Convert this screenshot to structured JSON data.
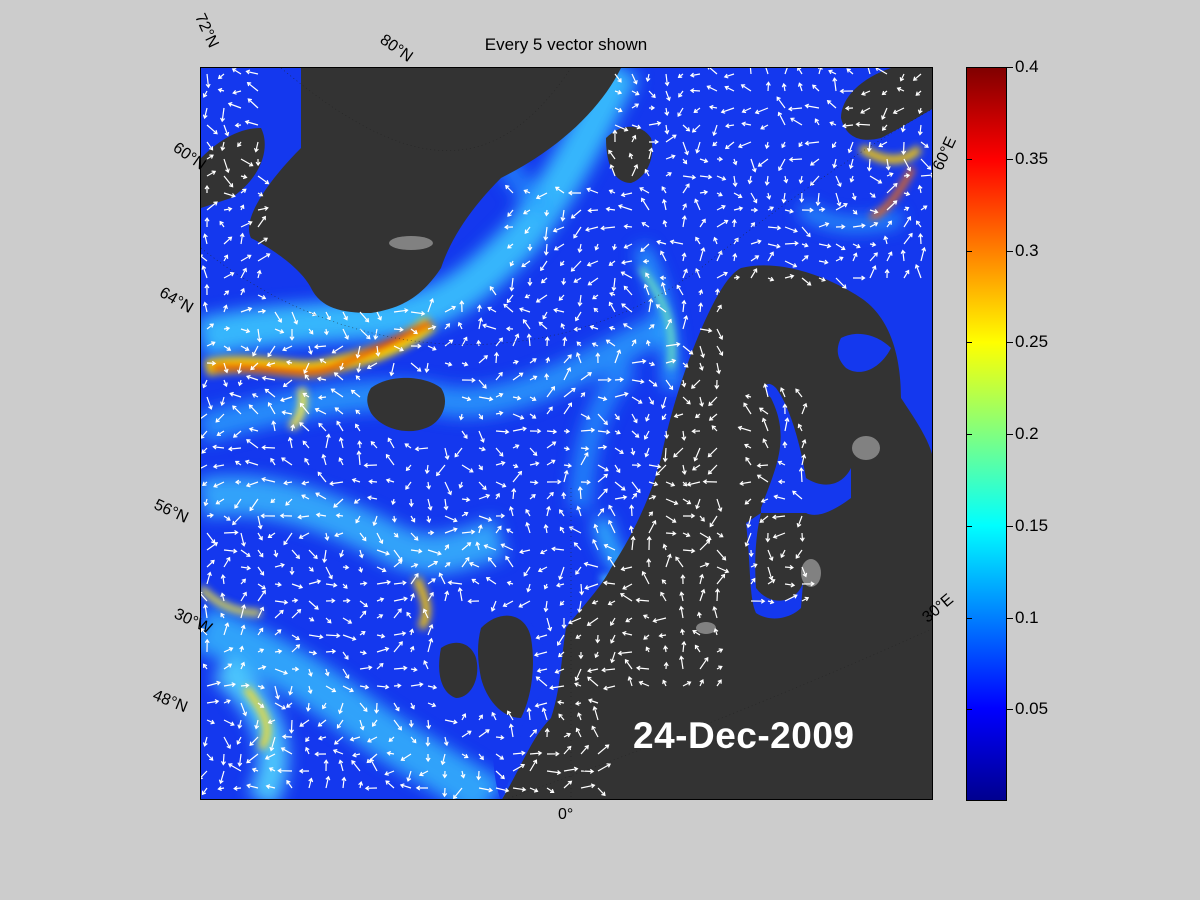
{
  "title": "Every 5 vector shown",
  "date_stamp": "24-Dec-2009",
  "graticule_labels": {
    "lat_72": "72°N",
    "lat_80": "80°N",
    "lat_60": "60°N",
    "lat_64": "64°N",
    "lat_56": "56°N",
    "lat_48": "48°N",
    "lon_30w": "30°W",
    "lon_0": "0°",
    "lon_30e": "30°E",
    "lon_60e": "60°E"
  },
  "colorbar": {
    "min": 0,
    "max": 0.4,
    "colormap": "jet",
    "tick_values": [
      0.05,
      0.1,
      0.15,
      0.2,
      0.25,
      0.3,
      0.35,
      0.4
    ],
    "tick_labels": [
      "0.05",
      "0.1",
      "0.15",
      "0.2",
      "0.25",
      "0.3",
      "0.35",
      "0.4"
    ]
  },
  "colors": {
    "background": "#cccccc",
    "land": "#333333",
    "ice": "#888888",
    "vector": "#ffffff"
  }
}
